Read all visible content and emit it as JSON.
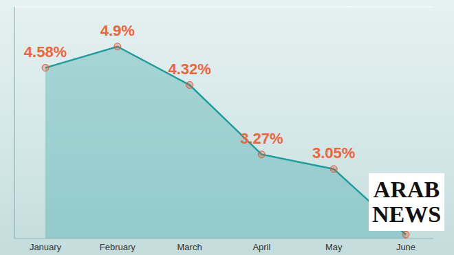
{
  "chart_data": {
    "type": "area",
    "categories": [
      "January",
      "February",
      "March",
      "April",
      "May",
      "June"
    ],
    "values": [
      4.58,
      4.9,
      4.32,
      3.27,
      3.05,
      2.06
    ],
    "value_labels": [
      "4.58%",
      "4.9%",
      "4.32%",
      "3.27%",
      "3.05%",
      null
    ],
    "data_labels": true,
    "color": "#1f9c9c",
    "marker": "circle",
    "ylim": [
      2,
      5.5
    ],
    "yticks": [
      2,
      2.5,
      3,
      3.5,
      4,
      4.5,
      5,
      5.5
    ],
    "grid": true,
    "tick_labels": "x",
    "annotations": [
      "ARAB",
      "NEWS"
    ]
  }
}
